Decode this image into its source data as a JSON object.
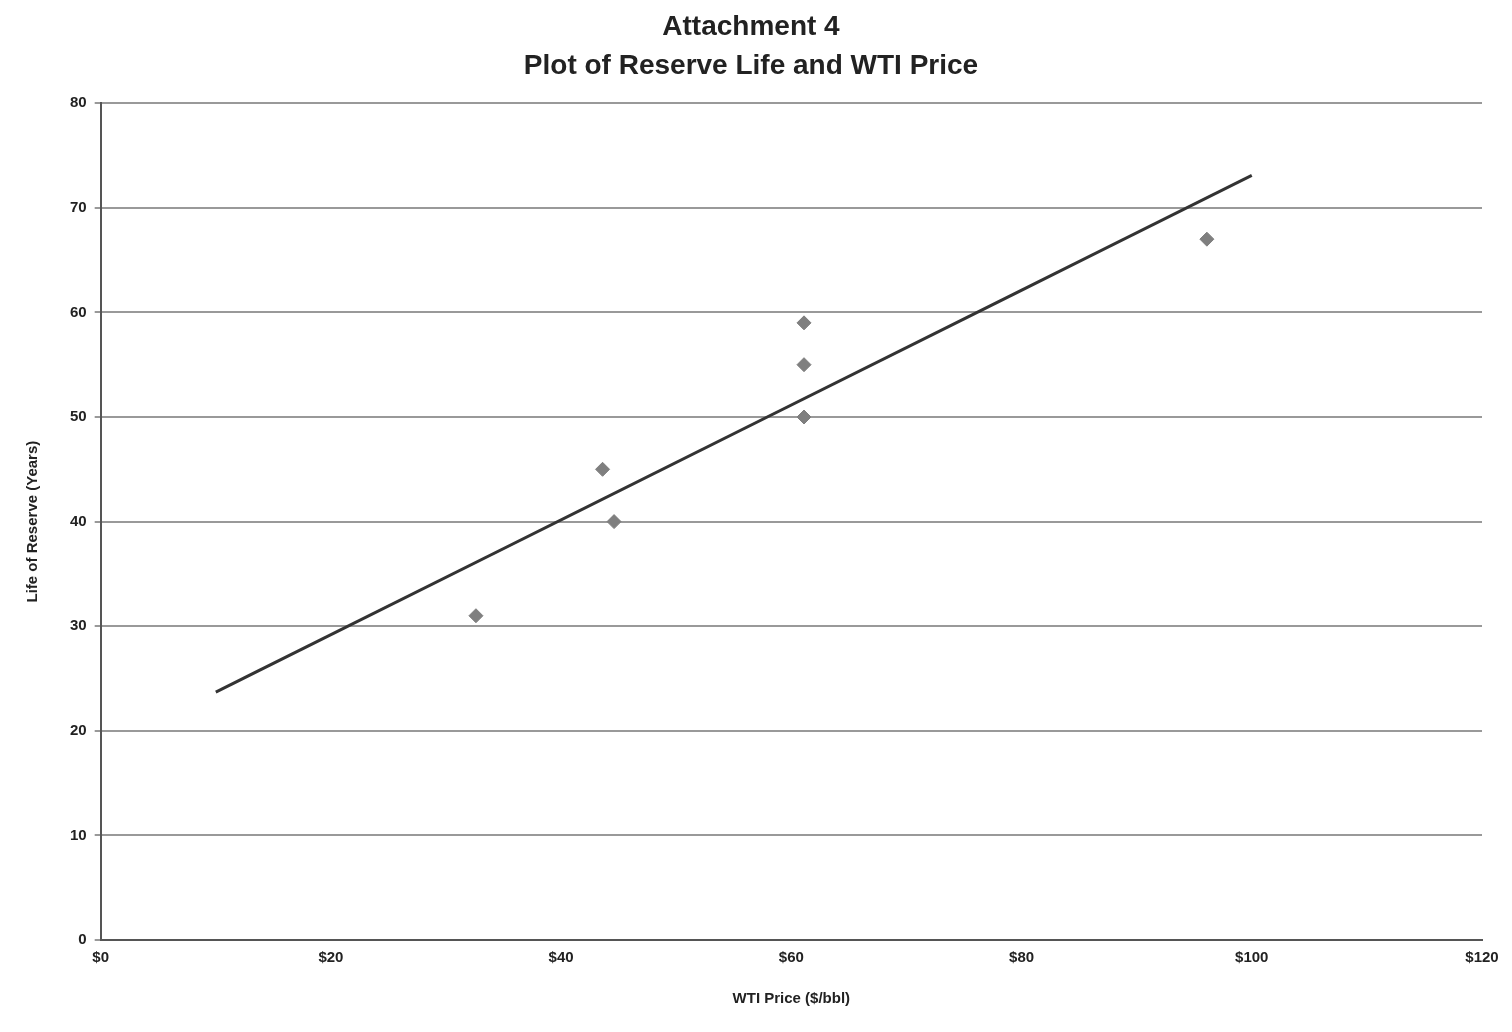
{
  "chart_data": {
    "type": "scatter",
    "title": "Attachment 4",
    "subtitle": "Plot of Reserve Life and WTI Price",
    "xlabel": "WTI Price ($/bbl)",
    "ylabel": "Life of Reserve (Years)",
    "series": [
      {
        "color": "#7f7f7f",
        "marker": "diamond",
        "x": [
          32.6,
          43.6,
          44.6,
          61.1,
          61.1,
          61.1,
          96.1
        ],
        "values": [
          31,
          45,
          40,
          59,
          55,
          50,
          67
        ]
      },
      {
        "type": "line",
        "color": "#333333",
        "marker": "none",
        "x": [
          10,
          100
        ],
        "values": [
          23.7,
          73.1
        ]
      }
    ],
    "xlim": [
      0,
      120
    ],
    "xticks": [
      {
        "value": 0,
        "label": "$0"
      },
      {
        "value": 20,
        "label": "$20"
      },
      {
        "value": 40,
        "label": "$40"
      },
      {
        "value": 60,
        "label": "$60"
      },
      {
        "value": 80,
        "label": "$80"
      },
      {
        "value": 100,
        "label": "$100"
      },
      {
        "value": 120,
        "label": "$120"
      }
    ],
    "ylim": [
      0,
      80
    ],
    "yticks": [
      0,
      10,
      20,
      30,
      40,
      50,
      60,
      70,
      80
    ],
    "grid": "y",
    "legend": false
  }
}
